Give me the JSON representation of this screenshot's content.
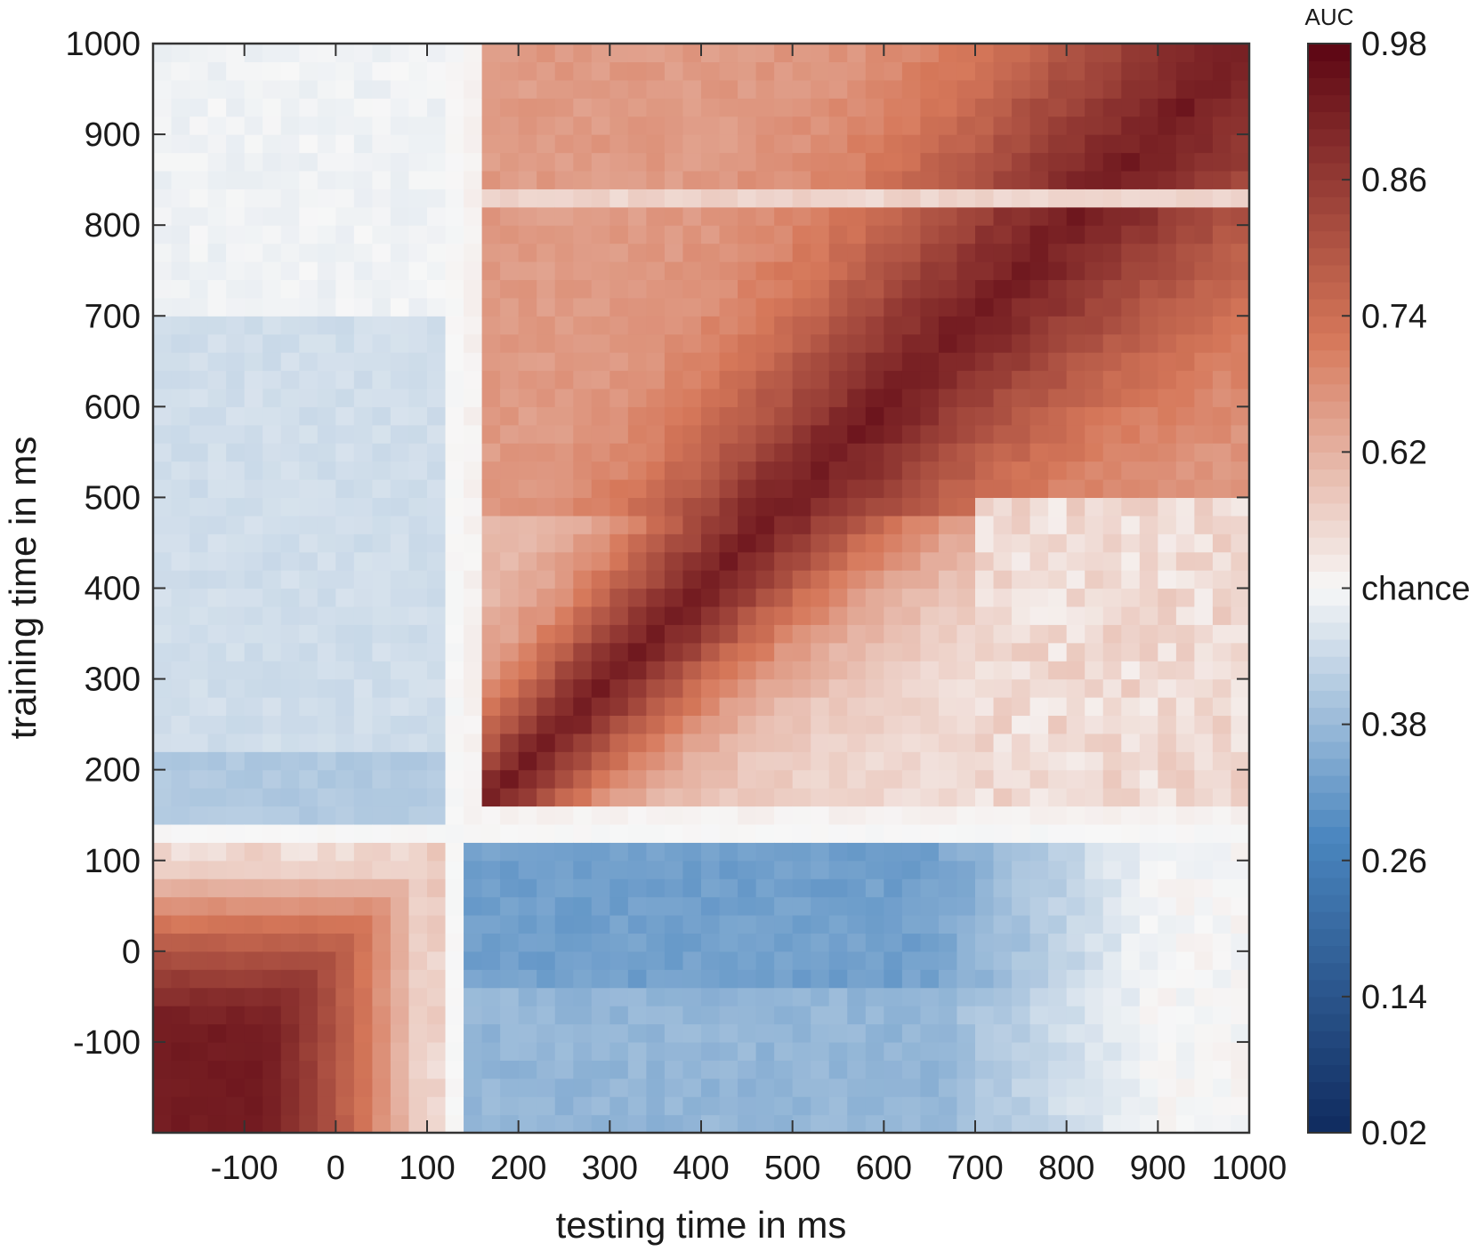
{
  "chart_data": {
    "type": "heatmap",
    "title": "",
    "xlabel": "testing time in ms",
    "ylabel": "training time in ms",
    "xlim": [
      -200,
      1000
    ],
    "ylim": [
      -200,
      1000
    ],
    "x_ticks": [
      {
        "value": -100,
        "label": "-100"
      },
      {
        "value": 0,
        "label": "0"
      },
      {
        "value": 100,
        "label": "100"
      },
      {
        "value": 200,
        "label": "200"
      },
      {
        "value": 300,
        "label": "300"
      },
      {
        "value": 400,
        "label": "400"
      },
      {
        "value": 500,
        "label": "500"
      },
      {
        "value": 600,
        "label": "600"
      },
      {
        "value": 700,
        "label": "700"
      },
      {
        "value": 800,
        "label": "800"
      },
      {
        "value": 900,
        "label": "900"
      },
      {
        "value": 1000,
        "label": "1000"
      }
    ],
    "y_ticks": [
      {
        "value": -100,
        "label": "-100"
      },
      {
        "value": 0,
        "label": "0"
      },
      {
        "value": 100,
        "label": "100"
      },
      {
        "value": 200,
        "label": "200"
      },
      {
        "value": 300,
        "label": "300"
      },
      {
        "value": 400,
        "label": "400"
      },
      {
        "value": 500,
        "label": "500"
      },
      {
        "value": 600,
        "label": "600"
      },
      {
        "value": 700,
        "label": "700"
      },
      {
        "value": 800,
        "label": "800"
      },
      {
        "value": 900,
        "label": "900"
      },
      {
        "value": 1000,
        "label": "1000"
      }
    ],
    "colorbar": {
      "title": "AUC",
      "range": [
        0.02,
        0.98
      ],
      "ticks": [
        {
          "value": 0.98,
          "label": "0.98"
        },
        {
          "value": 0.86,
          "label": "0.86"
        },
        {
          "value": 0.74,
          "label": "0.74"
        },
        {
          "value": 0.62,
          "label": "0.62"
        },
        {
          "value": 0.5,
          "label": "chance"
        },
        {
          "value": 0.38,
          "label": "0.38"
        },
        {
          "value": 0.26,
          "label": "0.26"
        },
        {
          "value": 0.14,
          "label": "0.14"
        },
        {
          "value": 0.02,
          "label": "0.02"
        }
      ],
      "colormap": "diverging blue-white-red",
      "colors": {
        "low": "#0f2a5e",
        "mid_low": "#4a86bf",
        "center": "#f7f7f7",
        "mid_high": "#d6785a",
        "high": "#5b0513"
      }
    },
    "grid": false,
    "regions": [
      {
        "desc": "early train / early test",
        "x_range": [
          -200,
          110
        ],
        "y_range": [
          -200,
          110
        ],
        "auc_peak": 0.93
      },
      {
        "desc": "train post-150 / test post-150 diagonal",
        "x_range": [
          160,
          1000
        ],
        "y_range": [
          160,
          1000
        ],
        "diagonal_auc": 0.92,
        "off_diagonal_auc": 0.65
      },
      {
        "desc": "train early / test late (below chance)",
        "x_range": [
          150,
          650
        ],
        "y_range": [
          -200,
          120
        ],
        "auc_min": 0.3
      },
      {
        "desc": "train mid / test early (below chance)",
        "x_range": [
          -200,
          120
        ],
        "y_range": [
          160,
          700
        ],
        "auc_min": 0.42
      }
    ]
  }
}
